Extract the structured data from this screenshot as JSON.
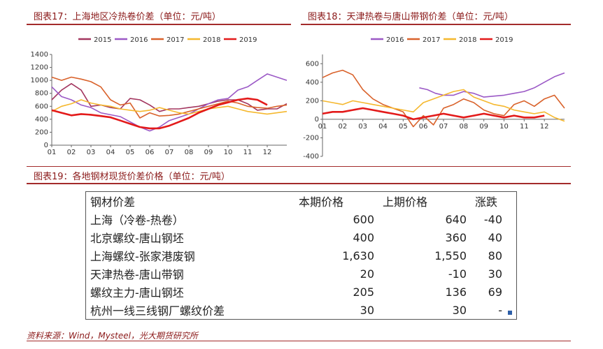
{
  "figures": {
    "fig17_title": "图表17：上海地区冷热卷价差（单位：元/吨）",
    "fig18_title": "图表18：天津热卷与唐山带钢价差（单位：元/吨）",
    "fig19_title": "图表19：各地钢材现货价差价格（单位：元/吨）"
  },
  "chart_data": [
    {
      "type": "line",
      "series": [
        {
          "name": "2015",
          "color": "#a3365f",
          "x": [
            0,
            0.5,
            1,
            1.5,
            2,
            2.5,
            3,
            3.5,
            4,
            4.5,
            5,
            5.5,
            6,
            6.5,
            7,
            7.5,
            8,
            8.5,
            9,
            9.5,
            10,
            10.5,
            11,
            11.5,
            12
          ],
          "values": [
            700,
            850,
            950,
            850,
            600,
            620,
            580,
            560,
            720,
            700,
            620,
            520,
            560,
            560,
            580,
            600,
            640,
            680,
            700,
            700,
            640,
            540,
            560,
            560,
            640
          ]
        },
        {
          "name": "2016",
          "color": "#9b59c6",
          "x": [
            0,
            0.5,
            1,
            1.5,
            2,
            2.5,
            3,
            3.5,
            4,
            4.5,
            5,
            5.5,
            6,
            6.5,
            7,
            7.5,
            8,
            8.5,
            9,
            9.5,
            10,
            10.5,
            11,
            11.5,
            12
          ],
          "values": [
            900,
            750,
            700,
            620,
            580,
            500,
            470,
            440,
            360,
            280,
            220,
            280,
            380,
            430,
            480,
            560,
            640,
            700,
            720,
            850,
            900,
            1000,
            1100,
            1050,
            1000
          ]
        },
        {
          "name": "2017",
          "color": "#d9622b",
          "x": [
            0,
            0.5,
            1,
            1.5,
            2,
            2.5,
            3,
            3.5,
            4,
            4.5,
            5,
            5.5,
            6,
            6.5,
            7,
            7.5,
            8,
            8.5,
            9,
            9.5,
            10,
            10.5,
            11,
            11.5,
            12
          ],
          "values": [
            1050,
            1000,
            1050,
            1020,
            980,
            900,
            700,
            620,
            650,
            420,
            500,
            450,
            460,
            480,
            520,
            560,
            600,
            640,
            680,
            650,
            600,
            580,
            570,
            600,
            620
          ]
        },
        {
          "name": "2018",
          "color": "#f5b82e",
          "x": [
            0,
            0.5,
            1,
            1.5,
            2,
            2.5,
            3,
            3.5,
            4,
            4.5,
            5,
            5.5,
            6,
            6.5,
            7,
            7.5,
            8,
            8.5,
            9,
            9.5,
            10,
            10.5,
            11,
            11.5,
            12
          ],
          "values": [
            520,
            600,
            640,
            700,
            650,
            620,
            600,
            560,
            540,
            520,
            540,
            580,
            540,
            500,
            480,
            520,
            560,
            580,
            600,
            560,
            520,
            500,
            480,
            500,
            520
          ]
        },
        {
          "name": "2019",
          "color": "#e31a1a",
          "x": [
            0,
            0.5,
            1,
            1.5,
            2,
            2.5,
            3,
            3.5,
            4,
            4.5,
            5,
            5.5,
            6,
            6.5,
            7,
            7.5,
            8,
            8.5,
            9,
            9.5,
            10,
            10.5,
            11
          ],
          "values": [
            540,
            500,
            460,
            480,
            470,
            450,
            430,
            380,
            330,
            280,
            260,
            260,
            300,
            360,
            420,
            500,
            560,
            620,
            660,
            700,
            720,
            700,
            620
          ]
        }
      ],
      "ylim": [
        0,
        1400
      ],
      "yticks": [
        "1400",
        "1200",
        "1000",
        "800",
        "600",
        "400",
        "200",
        "0"
      ],
      "xticks": [
        "01",
        "02",
        "03",
        "04",
        "05",
        "06",
        "07",
        "08",
        "09",
        "10",
        "11",
        "12"
      ]
    },
    {
      "type": "line",
      "series": [
        {
          "name": "2016",
          "color": "#9b59c6",
          "x": [
            4.8,
            5.2,
            5.6,
            6,
            6.5,
            7,
            7.5,
            8,
            8.5,
            9,
            9.5,
            10,
            10.5,
            11,
            11.5,
            12
          ],
          "values": [
            340,
            320,
            280,
            260,
            260,
            300,
            280,
            240,
            250,
            260,
            280,
            300,
            340,
            400,
            460,
            500
          ]
        },
        {
          "name": "2017",
          "color": "#d9622b",
          "x": [
            0,
            0.5,
            1,
            1.5,
            2,
            2.5,
            3,
            3.5,
            4,
            4.5,
            5,
            5.5,
            6,
            6.5,
            7,
            7.5,
            8,
            8.5,
            9,
            9.5,
            10,
            10.5,
            11,
            11.5,
            12
          ],
          "values": [
            450,
            500,
            530,
            480,
            320,
            220,
            160,
            120,
            80,
            -80,
            40,
            -60,
            120,
            160,
            220,
            180,
            100,
            60,
            40,
            160,
            200,
            140,
            220,
            260,
            120
          ]
        },
        {
          "name": "2018",
          "color": "#f5b82e",
          "x": [
            0,
            0.5,
            1,
            1.5,
            2,
            2.5,
            3,
            3.5,
            4,
            4.5,
            5,
            5.5,
            6,
            6.5,
            7,
            7.5,
            8,
            8.5,
            9,
            9.5,
            10,
            10.5,
            11,
            11.5,
            12
          ],
          "values": [
            200,
            180,
            160,
            200,
            180,
            160,
            140,
            120,
            100,
            80,
            180,
            220,
            260,
            300,
            320,
            240,
            200,
            160,
            140,
            100,
            80,
            60,
            80,
            20,
            -20
          ]
        },
        {
          "name": "2019",
          "color": "#e31a1a",
          "x": [
            0,
            0.5,
            1,
            1.5,
            2,
            2.5,
            3,
            3.5,
            4,
            4.5,
            5,
            5.5,
            6,
            6.5,
            7,
            7.5,
            8,
            8.5,
            9,
            9.5,
            10,
            10.5,
            11
          ],
          "values": [
            60,
            80,
            80,
            100,
            120,
            100,
            80,
            60,
            40,
            0,
            20,
            40,
            60,
            40,
            20,
            40,
            60,
            40,
            20,
            40,
            20,
            20,
            40
          ]
        }
      ],
      "ylim": [
        -400,
        700
      ],
      "yticks": [
        "600",
        "400",
        "200",
        "0",
        "-200",
        "-400"
      ],
      "xticks": [
        "01",
        "02",
        "03",
        "04",
        "05",
        "06",
        "07",
        "08",
        "09",
        "10",
        "11",
        "12"
      ]
    }
  ],
  "table": {
    "headers": [
      "钢材价差",
      "本期价格",
      "上期价格",
      "涨跌"
    ],
    "rows": [
      [
        "上海（冷卷-热卷）",
        "600",
        "640",
        "-40"
      ],
      [
        "北京螺纹-唐山钢坯",
        "400",
        "360",
        "40"
      ],
      [
        "上海螺纹-张家港废钢",
        "1,630",
        "1,550",
        "80"
      ],
      [
        "天津热卷-唐山带钢",
        "20",
        "-10",
        "30"
      ],
      [
        "螺纹主力-唐山钢坯",
        "205",
        "136",
        "69"
      ],
      [
        "杭州一线三线钢厂螺纹价差",
        "30",
        "30",
        "-"
      ]
    ]
  },
  "source": "资料来源：Wind，Mysteel，光大期货研究所",
  "accent_color": "#a32b2b"
}
